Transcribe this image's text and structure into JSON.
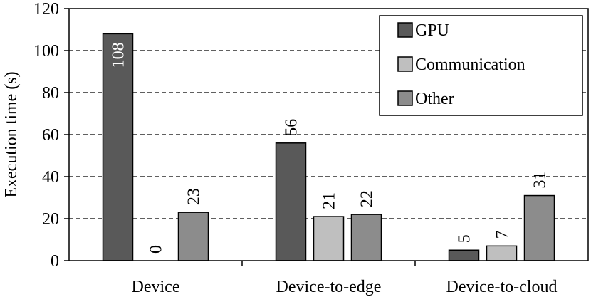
{
  "chart_data": {
    "type": "bar",
    "title": "",
    "xlabel": "",
    "ylabel": "Execution time (s)",
    "ylim": [
      0,
      120
    ],
    "yticks": [
      0,
      20,
      40,
      60,
      80,
      100,
      120
    ],
    "grid": "horizontal-dashed",
    "legend_position": "top-right",
    "categories": [
      "Device",
      "Device-to-edge",
      "Device-to-cloud"
    ],
    "series": [
      {
        "name": "GPU",
        "color": "#595959",
        "values": [
          108,
          56,
          5
        ],
        "labels": [
          "108",
          "56",
          "5"
        ]
      },
      {
        "name": "Communication",
        "color": "#bfbfbf",
        "values": [
          0,
          21,
          7
        ],
        "labels": [
          "0",
          "21",
          "7"
        ]
      },
      {
        "name": "Other",
        "color": "#8c8c8c",
        "values": [
          23,
          22,
          31
        ],
        "labels": [
          "23",
          "22",
          "31"
        ]
      }
    ]
  }
}
